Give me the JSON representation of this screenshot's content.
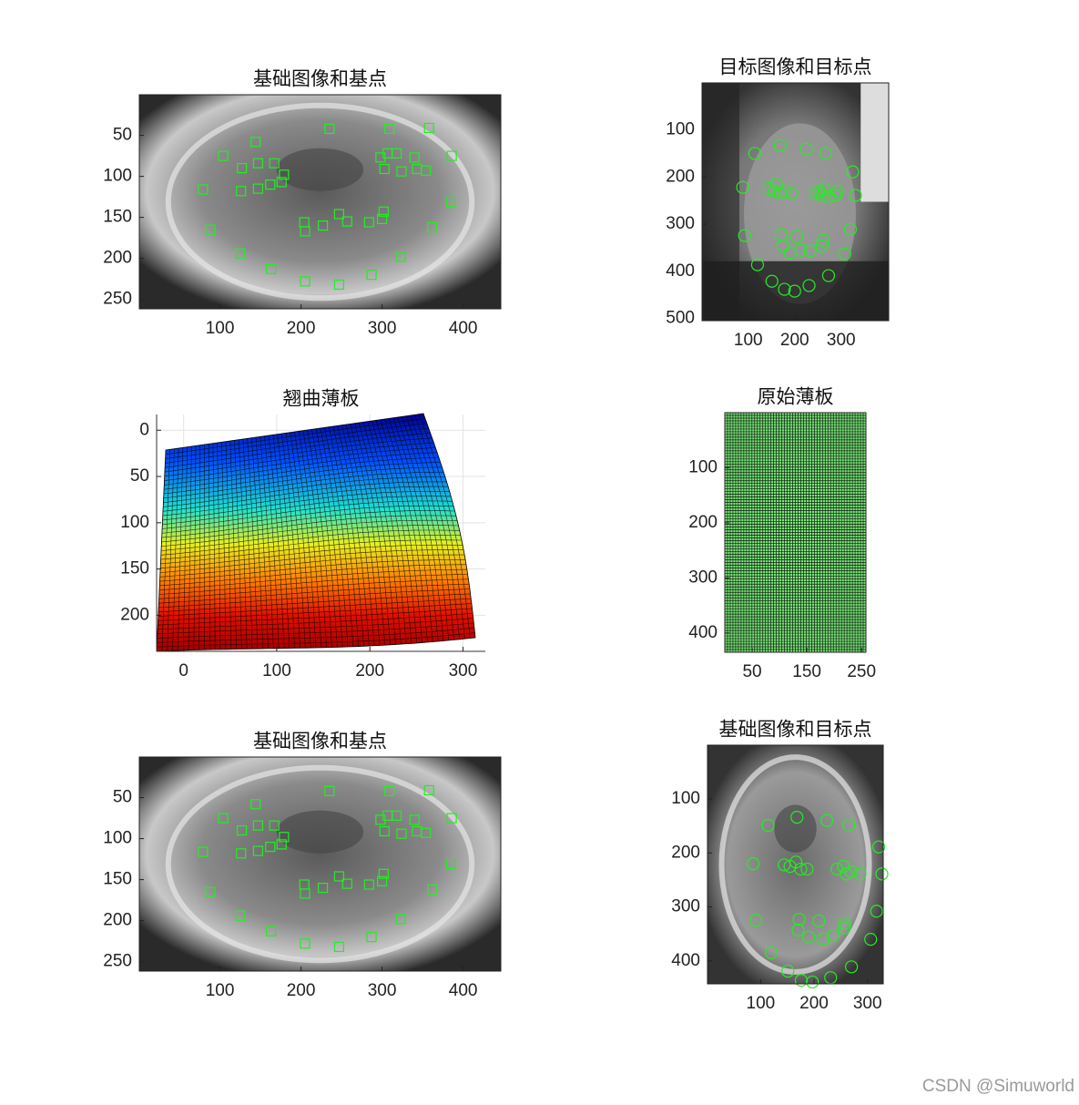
{
  "chart_data": [
    {
      "type": "scatter",
      "title": "基础图像和基点",
      "marker": "square",
      "color": "#22ee22",
      "y_reversed": true,
      "xlim": [
        0.5,
        446.5
      ],
      "ylim": [
        0.5,
        261.5
      ],
      "xticks": [
        100,
        200,
        300,
        400
      ],
      "yticks": [
        50,
        100,
        150,
        200,
        250
      ],
      "x": [
        144,
        104,
        127,
        147,
        167,
        179,
        162,
        147,
        126,
        176,
        79,
        88,
        235,
        309,
        358,
        386,
        298,
        307,
        318,
        340,
        303,
        324,
        343,
        354,
        385,
        302,
        300,
        284,
        362,
        204,
        205,
        227,
        247,
        257,
        125,
        163,
        205,
        247,
        287,
        323
      ],
      "y": [
        58,
        75,
        90,
        84,
        84,
        98,
        110,
        115,
        118,
        107,
        116,
        165,
        42,
        42,
        41,
        75,
        77,
        72,
        72,
        77,
        91,
        94,
        91,
        93,
        131,
        143,
        152,
        156,
        162,
        156,
        167,
        160,
        146,
        155,
        194,
        213,
        228,
        232,
        220,
        198
      ]
    },
    {
      "type": "scatter",
      "title": "目标图像和目标点",
      "marker": "circle",
      "color": "#22ee22",
      "y_reversed": true,
      "xlim": [
        0.5,
        402.5
      ],
      "ylim": [
        0.5,
        504.5
      ],
      "xticks": [
        100,
        200,
        300
      ],
      "yticks": [
        100,
        200,
        300,
        400,
        500
      ],
      "x": [
        114,
        169,
        225,
        267,
        88,
        325,
        145,
        155,
        161,
        169,
        178,
        194,
        253,
        263,
        259,
        273,
        288,
        292,
        331,
        245,
        320,
        92,
        171,
        204,
        175,
        190,
        214,
        233,
        261,
        259,
        308,
        120,
        151,
        178,
        200,
        231,
        273
      ],
      "y": [
        150,
        133,
        141,
        150,
        222,
        189,
        224,
        230,
        216,
        235,
        230,
        235,
        230,
        226,
        239,
        241,
        239,
        230,
        239,
        235,
        311,
        324,
        322,
        326,
        346,
        361,
        355,
        357,
        334,
        346,
        363,
        386,
        421,
        438,
        442,
        430,
        409
      ]
    },
    {
      "type": "surface",
      "title": "翘曲薄板",
      "y_reversed": true,
      "grid": true,
      "xlim": [
        -29,
        324
      ],
      "ylim": [
        -17,
        239
      ],
      "xticks": [
        0,
        100,
        200,
        300
      ],
      "yticks": [
        0,
        50,
        100,
        150,
        200
      ]
    },
    {
      "type": "mesh",
      "title": "原始薄板",
      "color": "#7fe57f",
      "y_reversed": true,
      "xlim": [
        0,
        258
      ],
      "ylim": [
        0,
        435
      ],
      "xticks": [
        50,
        150,
        250
      ],
      "yticks": [
        100,
        200,
        300,
        400
      ]
    },
    {
      "type": "scatter",
      "title": "基础图像和基点",
      "marker": "square",
      "color": "#22ee22",
      "y_reversed": true,
      "xlim": [
        0.5,
        446.5
      ],
      "ylim": [
        0.5,
        261.5
      ],
      "xticks": [
        100,
        200,
        300,
        400
      ],
      "yticks": [
        50,
        100,
        150,
        200,
        250
      ],
      "x": [
        144,
        104,
        127,
        147,
        167,
        179,
        162,
        147,
        126,
        176,
        79,
        88,
        235,
        309,
        358,
        386,
        298,
        307,
        318,
        340,
        303,
        324,
        343,
        354,
        385,
        302,
        300,
        284,
        362,
        204,
        205,
        227,
        247,
        257,
        125,
        163,
        205,
        247,
        287,
        323
      ],
      "y": [
        58,
        75,
        90,
        84,
        84,
        98,
        110,
        115,
        118,
        107,
        116,
        165,
        42,
        42,
        41,
        75,
        77,
        72,
        72,
        77,
        91,
        94,
        91,
        93,
        131,
        143,
        152,
        156,
        162,
        156,
        167,
        160,
        146,
        155,
        194,
        213,
        228,
        232,
        220,
        198
      ]
    },
    {
      "type": "scatter",
      "title": "基础图像和目标点",
      "marker": "circle",
      "color": "#22ee22",
      "y_reversed": true,
      "xlim": [
        0.5,
        329.5
      ],
      "ylim": [
        0.5,
        442.5
      ],
      "xticks": [
        100,
        200,
        300
      ],
      "yticks": [
        100,
        200,
        300,
        400
      ],
      "x": [
        114,
        168,
        224,
        265,
        86,
        321,
        144,
        155,
        166,
        175,
        187,
        243,
        255,
        269,
        286,
        260,
        327,
        317,
        91,
        172,
        209,
        170,
        190,
        217,
        236,
        257,
        257,
        306,
        120,
        151,
        176,
        197,
        231,
        270
      ],
      "y": [
        149,
        134,
        140,
        149,
        220,
        189,
        222,
        225,
        217,
        230,
        230,
        230,
        225,
        235,
        239,
        239,
        239,
        308,
        325,
        323,
        326,
        343,
        356,
        360,
        353,
        331,
        339,
        360,
        385,
        419,
        436,
        439,
        431,
        411
      ]
    }
  ],
  "watermark": "CSDN @Simuworld"
}
